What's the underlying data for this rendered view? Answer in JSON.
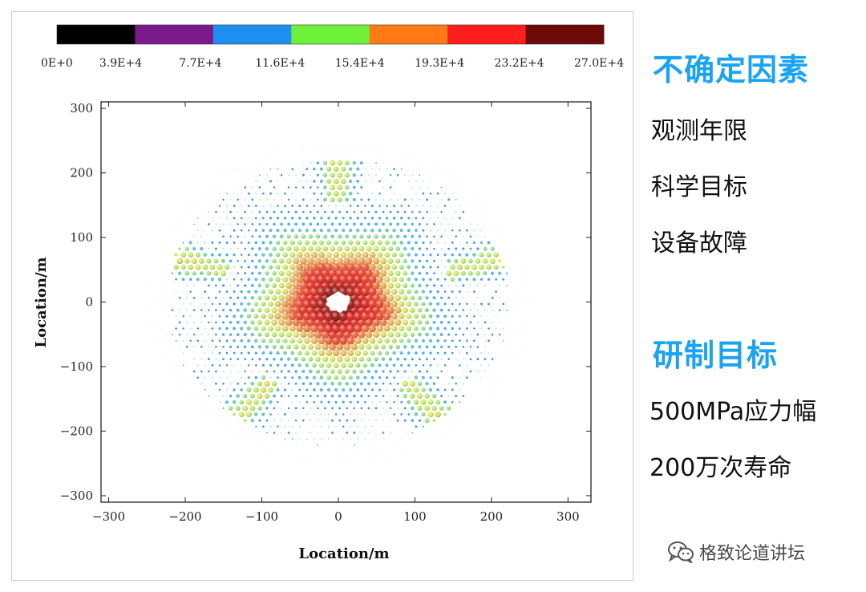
{
  "chart_data": {
    "type": "scatter",
    "subtype": "spatial stress distribution (bubble map)",
    "xlabel": "Location/m",
    "ylabel": "Location/m",
    "xlim": [
      -310,
      330
    ],
    "ylim": [
      -310,
      310
    ],
    "xticks": [
      -300,
      -200,
      -100,
      0,
      100,
      200,
      300
    ],
    "yticks": [
      -300,
      -200,
      -100,
      0,
      100,
      200,
      300
    ],
    "xtick_labels": [
      "−300",
      "−200",
      "−100",
      "0",
      "100",
      "200",
      "300"
    ],
    "ytick_labels": [
      "−300",
      "−200",
      "−100",
      "0",
      "100",
      "200",
      "300"
    ],
    "colorbar": {
      "position": "top",
      "labels": [
        "0E+0",
        "3.9E+4",
        "7.7E+4",
        "11.6E+4",
        "15.4E+4",
        "19.3E+4",
        "23.2E+4",
        "27.0E+4"
      ],
      "values": [
        0,
        39000,
        77000,
        116000,
        154000,
        193000,
        232000,
        270000
      ],
      "colors": [
        "#000000",
        "#7a1a8c",
        "#1e8ff0",
        "#6ef03a",
        "#ff7a14",
        "#ff1e1e",
        "#6b0a08"
      ]
    },
    "field": {
      "center": [
        0,
        0
      ],
      "outer_radius_m": 250,
      "hot_core_radius_m": 100,
      "empty_center_radius_m": 14,
      "symmetry": "pentagonal",
      "peak_value": 260000
    }
  },
  "sidebar": {
    "heading_uncertain": "不确定因素",
    "uncertain_items": [
      "观测年限",
      "科学目标",
      "设备故障"
    ],
    "heading_goal": "研制目标",
    "goal_items": [
      "500MPa应力幅",
      "200万次寿命"
    ]
  },
  "watermark": {
    "text": "格致论道讲坛",
    "icon": "wechat-icon"
  },
  "colors": {
    "accent": "#1aa4f0",
    "text": "#111111"
  }
}
